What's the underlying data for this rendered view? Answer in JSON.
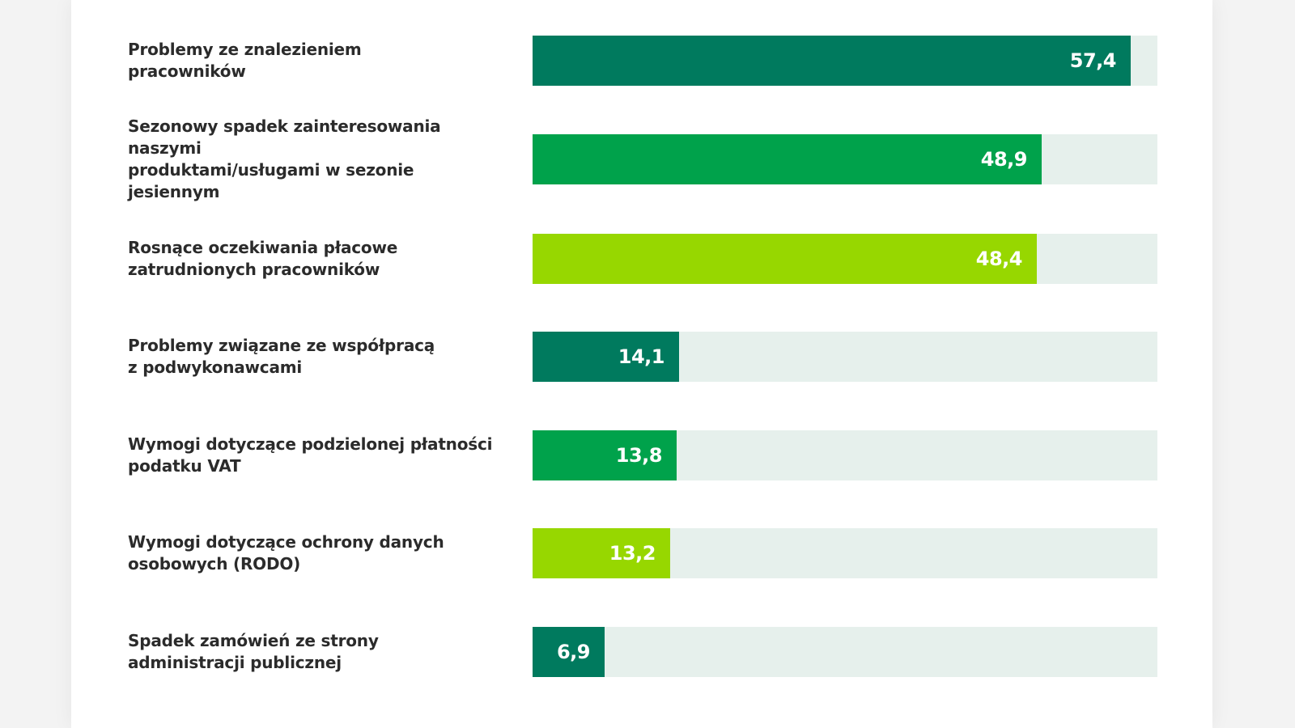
{
  "chart_data": {
    "type": "bar",
    "orientation": "horizontal",
    "xlim": [
      0,
      60
    ],
    "categories": [
      "Problemy ze znalezieniem\npracowników",
      "Sezonowy spadek zainteresowania naszymi\nproduktami/usługami w sezonie jesiennym",
      "Rosnące oczekiwania płacowe\nzatrudnionych pracowników",
      "Problemy związane ze współpracą\nz podwykonawcami",
      "Wymogi dotyczące podzielonej płatności\npodatku VAT",
      "Wymogi dotyczące ochrony danych\nosobowych (RODO)",
      "Spadek zamówień ze strony\nadministracji publicznej"
    ],
    "values": [
      57.4,
      48.9,
      48.4,
      14.1,
      13.8,
      13.2,
      6.9
    ],
    "value_labels": [
      "57,4",
      "48,9",
      "48,4",
      "14,1",
      "13,8",
      "13,2",
      "6,9"
    ],
    "bar_colors": [
      "#007a5e",
      "#00a24b",
      "#97d700",
      "#007a5e",
      "#00a24b",
      "#97d700",
      "#007a5e"
    ],
    "track_color": "#e6f0ec",
    "grid": false,
    "legend": "none"
  }
}
